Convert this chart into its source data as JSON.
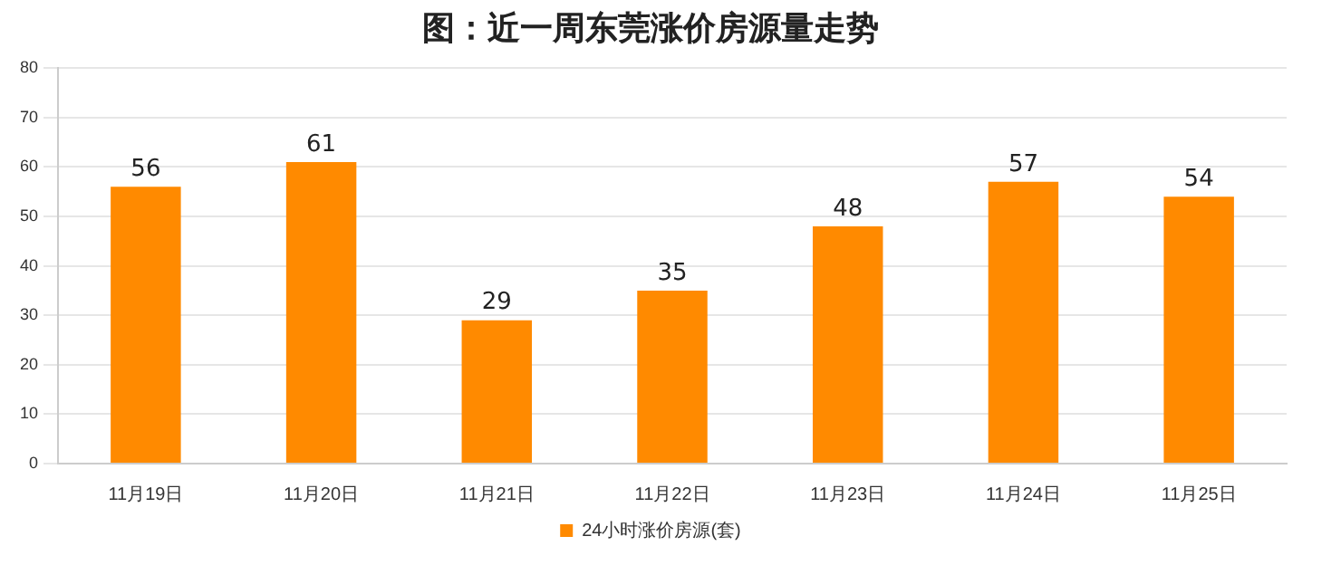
{
  "chart_data": {
    "type": "bar",
    "title": "图：近一周东莞涨价房源量走势",
    "categories": [
      "11月19日",
      "11月20日",
      "11月21日",
      "11月22日",
      "11月23日",
      "11月24日",
      "11月25日"
    ],
    "series": [
      {
        "name": "24小时涨价房源(套)",
        "color": "#ff8a00",
        "values": [
          56,
          61,
          29,
          35,
          48,
          57,
          54
        ]
      }
    ],
    "ylim": [
      0,
      80
    ],
    "yticks": [
      0,
      10,
      20,
      30,
      40,
      50,
      60,
      70,
      80
    ],
    "grid": "y",
    "legend": "bottom",
    "data_labels": true
  }
}
